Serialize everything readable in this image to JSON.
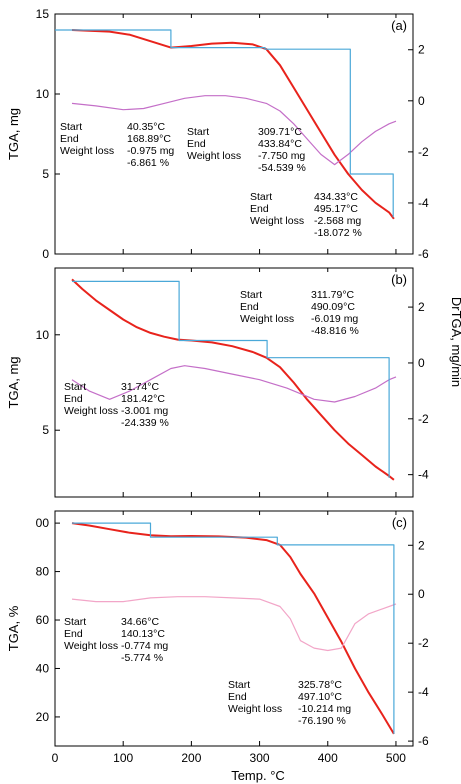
{
  "figure": {
    "xlabel": "Temp. °C",
    "xticks": [
      "0",
      "100",
      "200",
      "300",
      "400",
      "500"
    ],
    "right_axis_label": "DrTGA, mg/min"
  },
  "chart_data": [
    {
      "type": "line",
      "tag": "(a)",
      "ylabel": "TGA, mg",
      "xlim": [
        0,
        525
      ],
      "ylim": [
        0,
        15
      ],
      "yticks": [
        "0",
        "5",
        "10",
        "15"
      ],
      "y2lim": [
        -6,
        3.4
      ],
      "y2ticks": [
        "2",
        "0",
        "-2",
        "-4",
        "-6"
      ],
      "colors": {
        "tga": "#e8231c",
        "dtg": "#c46fc8",
        "step": "#4aa8d8"
      },
      "series": [
        {
          "role": "tga",
          "x": [
            25,
            50,
            80,
            110,
            140,
            170,
            200,
            230,
            260,
            290,
            310,
            330,
            350,
            370,
            390,
            410,
            430,
            450,
            470,
            490,
            497
          ],
          "y": [
            14,
            13.95,
            13.9,
            13.7,
            13.3,
            12.9,
            13.0,
            13.15,
            13.2,
            13.1,
            12.8,
            11.8,
            10.4,
            9.0,
            7.6,
            6.2,
            5.0,
            4.0,
            3.2,
            2.6,
            2.2
          ]
        },
        {
          "role": "dtg",
          "x": [
            25,
            60,
            100,
            130,
            160,
            190,
            220,
            250,
            280,
            310,
            330,
            350,
            370,
            390,
            410,
            430,
            450,
            470,
            490,
            500
          ],
          "y": [
            -0.1,
            -0.2,
            -0.35,
            -0.3,
            -0.1,
            0.1,
            0.2,
            0.2,
            0.1,
            -0.1,
            -0.4,
            -0.9,
            -1.5,
            -2.1,
            -2.5,
            -2.1,
            -1.6,
            -1.2,
            -0.9,
            -0.8
          ]
        },
        {
          "role": "step",
          "x": [
            0,
            170,
            170,
            308,
            308,
            433,
            433,
            496,
            496
          ],
          "y": [
            14,
            14,
            12.9,
            12.9,
            12.8,
            12.8,
            5.0,
            5.0,
            2.3
          ]
        }
      ],
      "annotations": [
        {
          "lines": [
            "Start",
            "End",
            "Weight loss",
            ""
          ],
          "values": [
            "40.35°C",
            "168.89°C",
            "-0.975 mg",
            "-6.861 %"
          ]
        },
        {
          "lines": [
            "Start",
            "End",
            "Weight loss",
            ""
          ],
          "values": [
            "309.71°C",
            "433.84°C",
            "-7.750 mg",
            "-54.539 %"
          ]
        },
        {
          "lines": [
            "Start",
            "End",
            "Weight loss",
            ""
          ],
          "values": [
            "434.33°C",
            "495.17°C",
            "-2.568 mg",
            "-18.072 %"
          ]
        }
      ]
    },
    {
      "type": "line",
      "tag": "(b)",
      "ylabel": "TGA, mg",
      "xlim": [
        0,
        525
      ],
      "ylim": [
        1.5,
        13.5
      ],
      "yticks": [
        "5",
        "10"
      ],
      "y2lim": [
        -4.8,
        3.4
      ],
      "y2ticks": [
        "2",
        "0",
        "-2",
        "-4"
      ],
      "colors": {
        "tga": "#e8231c",
        "dtg": "#c46fc8",
        "step": "#4aa8d8"
      },
      "series": [
        {
          "role": "tga",
          "x": [
            25,
            40,
            60,
            80,
            100,
            120,
            140,
            160,
            180,
            200,
            230,
            260,
            290,
            310,
            330,
            350,
            370,
            390,
            410,
            430,
            450,
            470,
            490,
            497
          ],
          "y": [
            12.9,
            12.4,
            11.8,
            11.3,
            10.8,
            10.4,
            10.1,
            9.9,
            9.75,
            9.7,
            9.6,
            9.4,
            9.1,
            8.8,
            8.3,
            7.5,
            6.6,
            5.8,
            5.0,
            4.3,
            3.7,
            3.1,
            2.6,
            2.4
          ]
        },
        {
          "role": "dtg",
          "x": [
            25,
            50,
            80,
            110,
            140,
            170,
            190,
            220,
            260,
            300,
            340,
            380,
            410,
            440,
            470,
            490,
            500
          ],
          "y": [
            -0.6,
            -1.0,
            -1.3,
            -1.0,
            -0.6,
            -0.2,
            -0.1,
            -0.2,
            -0.4,
            -0.6,
            -0.9,
            -1.3,
            -1.4,
            -1.2,
            -0.9,
            -0.6,
            -0.5
          ]
        },
        {
          "role": "step",
          "x": [
            25,
            182,
            182,
            311,
            311,
            490,
            490
          ],
          "y": [
            12.8,
            12.8,
            9.7,
            9.7,
            8.8,
            8.8,
            2.5
          ]
        }
      ],
      "annotations": [
        {
          "lines": [
            "Start",
            "End",
            "Weight loss",
            ""
          ],
          "values": [
            "31.74°C",
            "181.42°C",
            "-3.001 mg",
            "-24.339 %"
          ]
        },
        {
          "lines": [
            "Start",
            "End",
            "Weight loss",
            ""
          ],
          "values": [
            "311.79°C",
            "490.09°C",
            "-6.019 mg",
            "-48.816 %"
          ]
        }
      ]
    },
    {
      "type": "line",
      "tag": "(c)",
      "ylabel": "TGA, %",
      "xlim": [
        0,
        525
      ],
      "ylim": [
        8,
        105
      ],
      "yticks": [
        "20",
        "40",
        "60",
        "80",
        "00"
      ],
      "y2lim": [
        -6.2,
        3.4
      ],
      "y2ticks": [
        "2",
        "0",
        "-2",
        "-4",
        "-6"
      ],
      "colors": {
        "tga": "#e8231c",
        "dtg": "#f2a6c8",
        "step": "#4aa8d8"
      },
      "series": [
        {
          "role": "tga",
          "x": [
            25,
            50,
            80,
            110,
            140,
            170,
            200,
            240,
            280,
            310,
            330,
            345,
            360,
            380,
            400,
            420,
            440,
            460,
            480,
            497
          ],
          "y": [
            100,
            99,
            97.5,
            96,
            95,
            94.6,
            94.7,
            94.5,
            94,
            93,
            91,
            86,
            79,
            71,
            61,
            51,
            40,
            30,
            21,
            13
          ]
        },
        {
          "role": "dtg",
          "x": [
            25,
            60,
            100,
            140,
            180,
            220,
            260,
            300,
            330,
            345,
            360,
            380,
            400,
            420,
            440,
            460,
            480,
            500
          ],
          "y": [
            -0.2,
            -0.3,
            -0.3,
            -0.15,
            -0.1,
            -0.1,
            -0.15,
            -0.2,
            -0.5,
            -1.0,
            -1.9,
            -2.2,
            -2.3,
            -2.2,
            -1.2,
            -0.8,
            -0.6,
            -0.4
          ]
        },
        {
          "role": "step",
          "x": [
            25,
            140,
            140,
            326,
            326,
            497,
            497
          ],
          "y": [
            100,
            100,
            94.2,
            94.2,
            91,
            91,
            13
          ]
        }
      ],
      "annotations": [
        {
          "lines": [
            "Start",
            "End",
            "Weight loss",
            ""
          ],
          "values": [
            "34.66°C",
            "140.13°C",
            "-0.774 mg",
            "-5.774 %"
          ]
        },
        {
          "lines": [
            "Start",
            "End",
            "Weight loss",
            ""
          ],
          "values": [
            "325.78°C",
            "497.10°C",
            "-10.214 mg",
            "-76.190 %"
          ]
        }
      ]
    }
  ]
}
